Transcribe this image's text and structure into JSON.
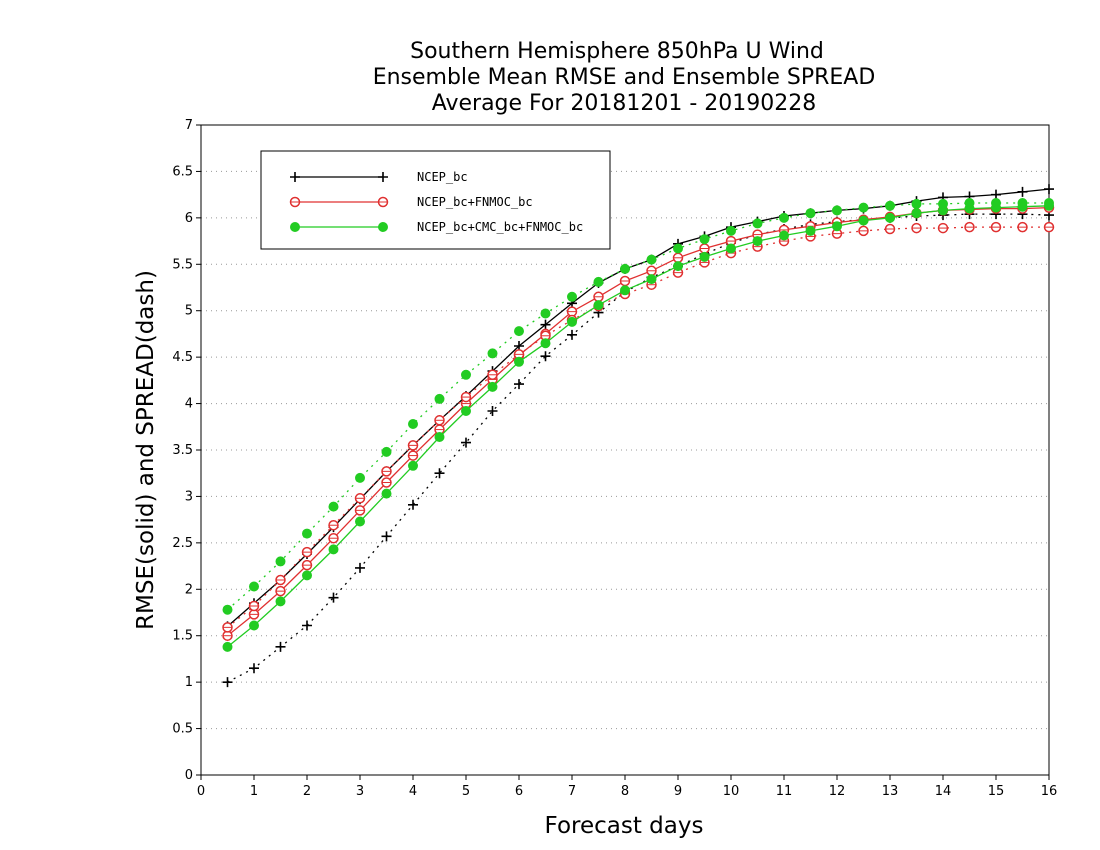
{
  "chart_data": {
    "type": "line",
    "title": [
      "Southern Hemisphere 850hPa U Wind",
      "Ensemble Mean RMSE and Ensemble SPREAD",
      "Average For 20181201 - 20190228"
    ],
    "xlabel": "Forecast days",
    "ylabel": "RMSE(solid) and SPREAD(dash)",
    "xlim": [
      0,
      16
    ],
    "ylim": [
      0,
      7
    ],
    "xticks": [
      0,
      1,
      2,
      3,
      4,
      5,
      6,
      7,
      8,
      9,
      10,
      11,
      12,
      13,
      14,
      15,
      16
    ],
    "yticks": [
      0,
      0.5,
      1,
      1.5,
      2,
      2.5,
      3,
      3.5,
      4,
      4.5,
      5,
      5.5,
      6,
      6.5,
      7
    ],
    "grid": "horizontal dotted",
    "legend_position": "top-left",
    "x": [
      0.5,
      1,
      1.5,
      2,
      2.5,
      3,
      3.5,
      4,
      4.5,
      5,
      5.5,
      6,
      6.5,
      7,
      7.5,
      8,
      8.5,
      9,
      9.5,
      10,
      10.5,
      11,
      11.5,
      12,
      12.5,
      13,
      13.5,
      14,
      14.5,
      15,
      15.5,
      16
    ],
    "series": [
      {
        "name": "NCEP_bc",
        "metric": "RMSE",
        "style": "solid",
        "marker": "plus",
        "color": "#000000",
        "values": [
          1.6,
          1.85,
          2.1,
          2.38,
          2.67,
          2.97,
          3.27,
          3.55,
          3.82,
          4.08,
          4.35,
          4.62,
          4.85,
          5.08,
          5.3,
          5.45,
          5.55,
          5.72,
          5.8,
          5.9,
          5.96,
          6.02,
          6.05,
          6.08,
          6.1,
          6.13,
          6.18,
          6.22,
          6.23,
          6.25,
          6.28,
          6.31
        ]
      },
      {
        "name": "NCEP_bc",
        "metric": "SPREAD",
        "style": "dash",
        "marker": "plus",
        "color": "#000000",
        "values": [
          1.0,
          1.15,
          1.38,
          1.61,
          1.91,
          2.23,
          2.57,
          2.91,
          3.25,
          3.58,
          3.92,
          4.21,
          4.51,
          4.74,
          4.98,
          5.2,
          5.36,
          5.48,
          5.61,
          5.73,
          5.82,
          5.88,
          5.93,
          5.96,
          5.98,
          6.0,
          6.02,
          6.03,
          6.04,
          6.04,
          6.04,
          6.03
        ]
      },
      {
        "name": "NCEP_bc+FNMOC_bc",
        "metric": "RMSE",
        "style": "solid",
        "marker": "circle-open",
        "color": "#e03030",
        "values": [
          1.5,
          1.73,
          1.98,
          2.26,
          2.55,
          2.85,
          3.15,
          3.44,
          3.72,
          4.0,
          4.26,
          4.52,
          4.75,
          4.99,
          5.15,
          5.32,
          5.43,
          5.57,
          5.67,
          5.75,
          5.82,
          5.87,
          5.91,
          5.95,
          5.98,
          6.01,
          6.05,
          6.08,
          6.09,
          6.1,
          6.1,
          6.11
        ]
      },
      {
        "name": "NCEP_bc+FNMOC_bc",
        "metric": "SPREAD",
        "style": "dash",
        "marker": "circle-open",
        "color": "#e03030",
        "values": [
          1.59,
          1.82,
          2.1,
          2.4,
          2.69,
          2.98,
          3.27,
          3.55,
          3.82,
          4.07,
          4.31,
          4.53,
          4.73,
          4.9,
          5.05,
          5.18,
          5.28,
          5.41,
          5.52,
          5.62,
          5.69,
          5.75,
          5.8,
          5.83,
          5.86,
          5.88,
          5.89,
          5.89,
          5.9,
          5.9,
          5.9,
          5.9
        ]
      },
      {
        "name": "NCEP_bc+CMC_bc+FNMOC_bc",
        "metric": "RMSE",
        "style": "solid",
        "marker": "circle-filled",
        "color": "#22cc22",
        "values": [
          1.38,
          1.61,
          1.87,
          2.15,
          2.43,
          2.73,
          3.03,
          3.33,
          3.64,
          3.92,
          4.18,
          4.45,
          4.65,
          4.88,
          5.06,
          5.22,
          5.34,
          5.48,
          5.58,
          5.67,
          5.75,
          5.81,
          5.86,
          5.91,
          5.97,
          6.0,
          6.05,
          6.08,
          6.1,
          6.11,
          6.12,
          6.13
        ]
      },
      {
        "name": "NCEP_bc+CMC_bc+FNMOC_bc",
        "metric": "SPREAD",
        "style": "dash",
        "marker": "circle-filled",
        "color": "#22cc22",
        "values": [
          1.78,
          2.03,
          2.3,
          2.6,
          2.89,
          3.2,
          3.48,
          3.78,
          4.05,
          4.31,
          4.54,
          4.78,
          4.97,
          5.15,
          5.31,
          5.45,
          5.55,
          5.67,
          5.77,
          5.86,
          5.94,
          6.0,
          6.05,
          6.08,
          6.11,
          6.13,
          6.15,
          6.15,
          6.16,
          6.16,
          6.16,
          6.16
        ]
      }
    ],
    "legend": [
      {
        "label": "NCEP_bc",
        "marker": "plus",
        "color": "#000000"
      },
      {
        "label": "NCEP_bc+FNMOC_bc",
        "marker": "circle-open",
        "color": "#e03030"
      },
      {
        "label": "NCEP_bc+CMC_bc+FNMOC_bc",
        "marker": "circle-filled",
        "color": "#22cc22"
      }
    ]
  }
}
